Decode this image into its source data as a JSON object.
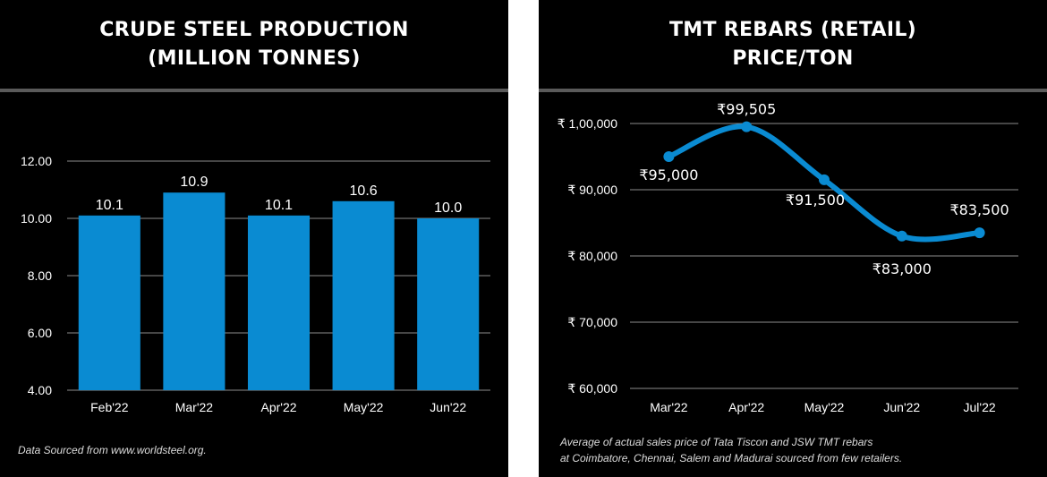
{
  "left_chart": {
    "title_lines": [
      "CRUDE STEEL PRODUCTION",
      "(MILLION TONNES)"
    ],
    "note": "Data Sourced from www.worldsteel.org."
  },
  "right_chart": {
    "title_lines": [
      "TMT REBARS (RETAIL)",
      "PRICE/TON"
    ],
    "note_lines": [
      "Average of actual sales price of Tata Tiscon and JSW TMT rebars",
      "at Coimbatore, Chennai, Salem and Madurai sourced from few retailers."
    ]
  },
  "colors": {
    "background": "#000000",
    "bar": "#0a8bd2",
    "line": "#0a8bd2",
    "grid": "#8c8c8c",
    "divider": "#5a5a5a",
    "text": "#ffffff"
  },
  "chart_data": [
    {
      "type": "bar",
      "title": "CRUDE STEEL PRODUCTION (MILLION TONNES)",
      "categories": [
        "Feb'22",
        "Mar'22",
        "Apr'22",
        "May'22",
        "Jun'22"
      ],
      "values": [
        10.1,
        10.9,
        10.1,
        10.6,
        10.0
      ],
      "data_labels": [
        "10.1",
        "10.9",
        "10.1",
        "10.6",
        "10.0"
      ],
      "ylim": [
        4,
        12
      ],
      "yticks": [
        4,
        6,
        8,
        10,
        12
      ],
      "ytick_labels": [
        "4.00",
        "6.00",
        "8.00",
        "10.00",
        "12.00"
      ],
      "grid": true,
      "legend": "none"
    },
    {
      "type": "line",
      "title": "TMT REBARS (RETAIL) PRICE/TON",
      "categories": [
        "Mar'22",
        "Apr'22",
        "May'22",
        "Jun'22",
        "Jul'22"
      ],
      "values": [
        95000,
        99505,
        91500,
        83000,
        83500
      ],
      "data_labels": [
        "₹95,000",
        "₹99,505",
        "₹91,500",
        "₹83,000",
        "₹83,500"
      ],
      "ylim": [
        60000,
        100000
      ],
      "yticks": [
        60000,
        70000,
        80000,
        90000,
        100000
      ],
      "ytick_labels": [
        "₹ 60,000",
        "₹ 70,000",
        "₹ 80,000",
        "₹ 90,000",
        "₹ 1,00,000"
      ],
      "smooth": true,
      "grid": true,
      "legend": "none"
    }
  ]
}
